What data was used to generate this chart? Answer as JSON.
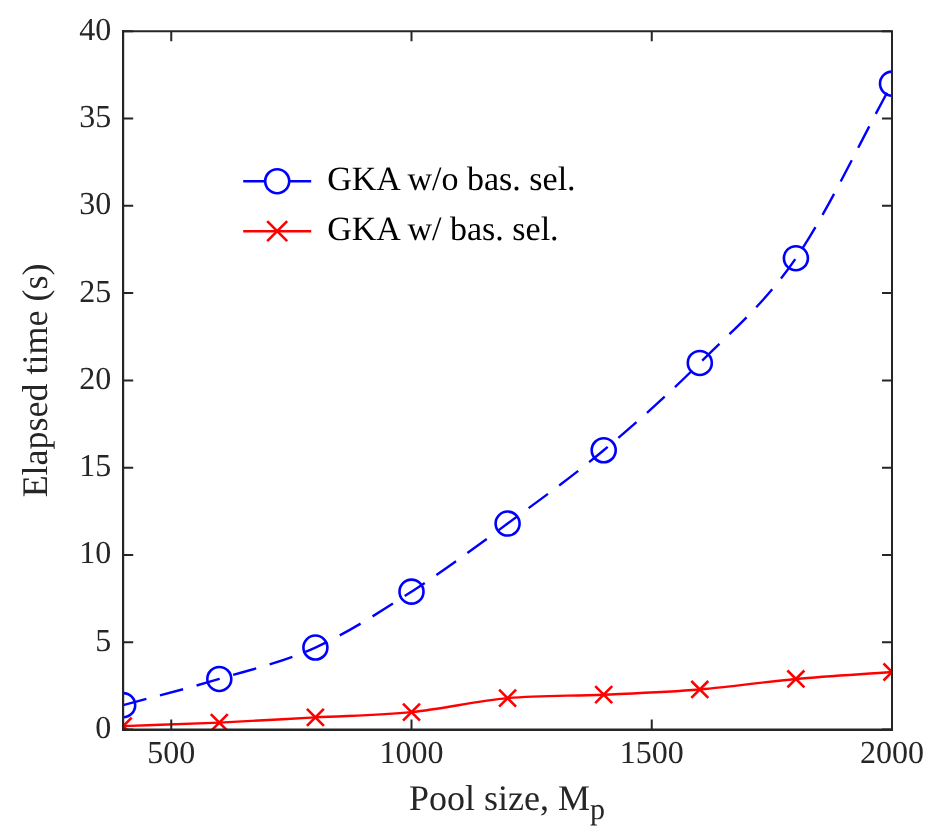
{
  "chart_data": {
    "type": "line",
    "xlabel": "Pool size, M$_{p}$",
    "ylabel": "Elapsed time (s)",
    "x": [
      400,
      600,
      800,
      1000,
      1200,
      1400,
      1600,
      1800,
      2000
    ],
    "series": [
      {
        "name": "GKA w/o bas. sel.",
        "color": "#0000ff",
        "marker": "circle",
        "line_style": "dashed",
        "values": [
          1.4,
          2.9,
          4.7,
          7.9,
          11.8,
          16,
          21,
          27,
          37
        ]
      },
      {
        "name": "GKA w/ bas. sel.",
        "color": "#ff0000",
        "marker": "cross",
        "line_style": "solid",
        "values": [
          0.2,
          0.4,
          0.7,
          1.0,
          1.8,
          2.0,
          2.3,
          2.9,
          3.3
        ]
      }
    ],
    "xlim": [
      400,
      2000
    ],
    "xticks": [
      500,
      1000,
      1500,
      2000
    ],
    "ylim": [
      0,
      40
    ],
    "yticks": [
      0,
      5,
      10,
      15,
      20,
      25,
      30,
      35,
      40
    ],
    "grid": false,
    "legend": "top left"
  }
}
